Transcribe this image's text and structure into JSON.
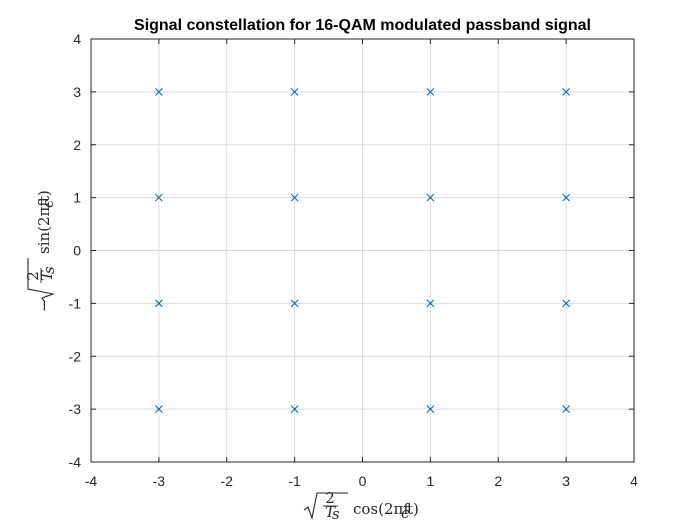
{
  "chart_data": {
    "type": "scatter",
    "title": "Signal constellation for 16-QAM modulated passband signal",
    "xlabel_parts": {
      "sqrt_num": "2",
      "sqrt_den": "T",
      "sqrt_den_sub": "s",
      "func": "cos(2πf",
      "func_sub": "c",
      "func_end": "t)"
    },
    "ylabel_parts": {
      "sign": "−",
      "sqrt_num": "2",
      "sqrt_den": "T",
      "sqrt_den_sub": "s",
      "func": "sin(2πf",
      "func_sub": "c",
      "func_end": "t)"
    },
    "xlim": [
      -4,
      4
    ],
    "ylim": [
      -4,
      4
    ],
    "xticks": [
      -4,
      -3,
      -2,
      -1,
      0,
      1,
      2,
      3,
      4
    ],
    "yticks": [
      -4,
      -3,
      -2,
      -1,
      0,
      1,
      2,
      3,
      4
    ],
    "grid": true,
    "marker": "x",
    "marker_color": "#0072BD",
    "points": [
      {
        "x": -3,
        "y": 3
      },
      {
        "x": -1,
        "y": 3
      },
      {
        "x": 1,
        "y": 3
      },
      {
        "x": 3,
        "y": 3
      },
      {
        "x": -3,
        "y": 1
      },
      {
        "x": -1,
        "y": 1
      },
      {
        "x": 1,
        "y": 1
      },
      {
        "x": 3,
        "y": 1
      },
      {
        "x": -3,
        "y": -1
      },
      {
        "x": -1,
        "y": -1
      },
      {
        "x": 1,
        "y": -1
      },
      {
        "x": 3,
        "y": -1
      },
      {
        "x": -3,
        "y": -3
      },
      {
        "x": -1,
        "y": -3
      },
      {
        "x": 1,
        "y": -3
      },
      {
        "x": 3,
        "y": -3
      }
    ]
  }
}
